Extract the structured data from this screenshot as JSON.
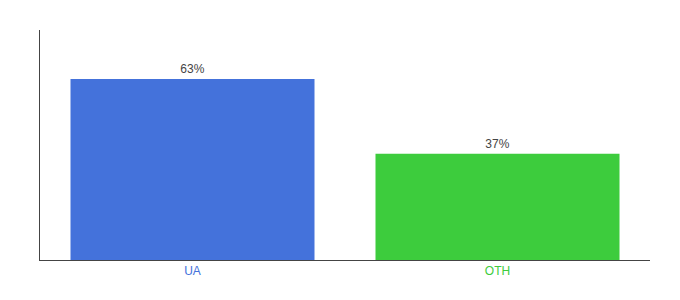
{
  "chart_data": {
    "type": "bar",
    "categories": [
      "UA",
      "OTH"
    ],
    "values": [
      63,
      37
    ],
    "value_labels": [
      "63%",
      "37%"
    ],
    "colors": [
      "#4472db",
      "#3dcc3d"
    ],
    "ylim": [
      0,
      80
    ],
    "data_labels": true,
    "tick_labels": "x",
    "grid": false
  }
}
